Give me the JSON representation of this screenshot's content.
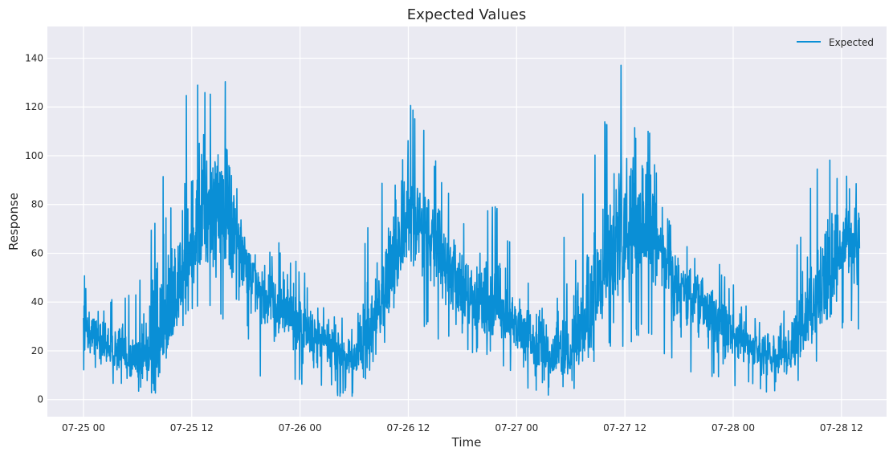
{
  "chart_data": {
    "type": "line",
    "title": "Expected Values",
    "xlabel": "Time",
    "ylabel": "Response",
    "x_range": [
      "07-24 20:00",
      "07-28 17:00"
    ],
    "ylim": [
      -7,
      153
    ],
    "x_ticks": [
      "07-25 00",
      "07-25 12",
      "07-26 00",
      "07-26 12",
      "07-27 00",
      "07-27 12",
      "07-28 00",
      "07-28 12"
    ],
    "y_ticks": [
      "0",
      "20",
      "40",
      "60",
      "80",
      "100",
      "120",
      "140"
    ],
    "y_tick_values": [
      0,
      20,
      40,
      60,
      80,
      100,
      120,
      140
    ],
    "grid": true,
    "legend": "top-right",
    "series": [
      {
        "name": "Expected",
        "color": "#0a8fd6",
        "x": [
          "07-25 00:00",
          "07-25 02:00",
          "07-25 04:00",
          "07-25 06:00",
          "07-25 08:00",
          "07-25 10:00",
          "07-25 12:00",
          "07-25 14:00",
          "07-25 16:00",
          "07-25 18:00",
          "07-25 20:00",
          "07-25 22:00",
          "07-26 00:00",
          "07-26 02:00",
          "07-26 04:00",
          "07-26 06:00",
          "07-26 08:00",
          "07-26 10:00",
          "07-26 12:00",
          "07-26 14:00",
          "07-26 16:00",
          "07-26 18:00",
          "07-26 20:00",
          "07-26 22:00",
          "07-27 00:00",
          "07-27 02:00",
          "07-27 04:00",
          "07-27 06:00",
          "07-27 08:00",
          "07-27 10:00",
          "07-27 12:00",
          "07-27 14:00",
          "07-27 16:00",
          "07-27 18:00",
          "07-27 20:00",
          "07-27 22:00",
          "07-28 00:00",
          "07-28 02:00",
          "07-28 04:00",
          "07-28 06:00",
          "07-28 08:00",
          "07-28 10:00",
          "07-28 12:00",
          "07-28 14:00"
        ],
        "values": [
          30,
          24,
          18,
          16,
          18,
          32,
          62,
          78,
          76,
          60,
          42,
          36,
          30,
          25,
          20,
          17,
          28,
          50,
          72,
          70,
          56,
          44,
          40,
          36,
          30,
          22,
          18,
          18,
          30,
          52,
          68,
          74,
          62,
          46,
          40,
          34,
          28,
          22,
          18,
          18,
          28,
          48,
          60,
          62
        ],
        "peak_values": [
          52,
          46,
          41,
          47,
          79,
          117,
          132,
          131,
          135,
          66,
          60,
          66,
          56,
          42,
          39,
          39,
          87,
          98,
          125,
          109,
          92,
          75,
          78,
          82,
          54,
          50,
          45,
          80,
          92,
          117,
          145,
          129,
          81,
          70,
          60,
          58,
          48,
          37,
          36,
          42,
          82,
          102,
          92,
          92
        ],
        "trough_values": [
          12,
          8,
          3,
          1,
          2,
          22,
          37,
          34,
          30,
          0,
          12,
          15,
          4,
          4,
          1,
          0,
          12,
          25,
          37,
          29,
          22,
          18,
          16,
          15,
          6,
          3,
          1,
          2,
          9,
          20,
          19,
          28,
          18,
          13,
          9,
          6,
          4,
          2,
          3,
          4,
          10,
          16,
          28,
          28
        ]
      }
    ]
  }
}
